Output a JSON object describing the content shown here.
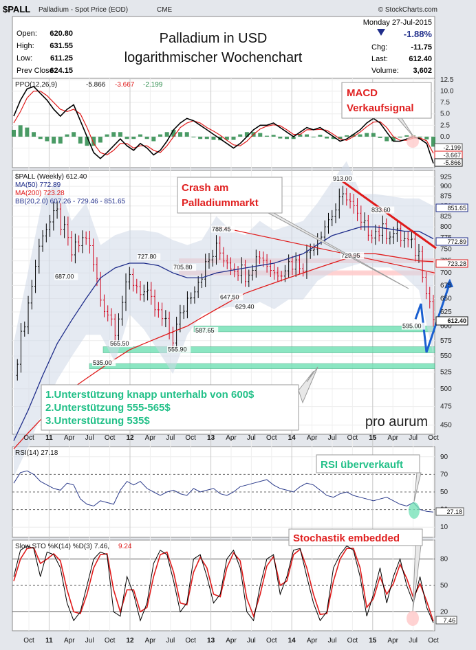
{
  "header": {
    "symbol": "$PALL",
    "name": "Palladium - Spot Price (EOD)",
    "exchange": "CME",
    "source": "© StockCharts.com",
    "date": "Monday  27-Jul-2015",
    "change_pct": "-1.88%",
    "chg_label": "Chg:",
    "chg_value": "-11.75",
    "last_label": "Last:",
    "last_value": "612.40",
    "volume_label": "Volume:",
    "volume_value": "3,602",
    "open_label": "Open:",
    "open_value": "620.80",
    "high_label": "High:",
    "high_value": "631.55",
    "low_label": "Low:",
    "low_value": "611.25",
    "prev_label": "Prev Close:",
    "prev_value": "624.15"
  },
  "title": {
    "line1": "Palladium in USD",
    "line2": "logarithmischer Wochenchart"
  },
  "annotations": {
    "macd": [
      "MACD",
      "Verkaufsignal"
    ],
    "crash": [
      "Crash am",
      "Palladiummarkt"
    ],
    "supports": [
      "1.Unterstützung knapp unterhalb von 600$",
      "2.Unterstützung 555-565$",
      "3.Unterstützung 535$"
    ],
    "rsi": "RSI überverkauft",
    "sto": "Stochastik embedded",
    "watermark": "pro aurum"
  },
  "legends": {
    "ppo": "PPO(12,26,9)",
    "ppo_vals": [
      "-5.866",
      "-3.667",
      "-2.199"
    ],
    "price": "$PALL (Weekly) 612.40",
    "ma50": "MA(50) 772.89",
    "ma200": "MA(200) 723.28",
    "bb": "BB(20,2.0) 607.26 - 729.46 - 851.65",
    "rsi": "RSI(14) 27.18",
    "sto": "Slow STO %K(14) %D(3) 7.46,",
    "sto_d": "9.24"
  },
  "right_labels": {
    "ppo": [
      "-2.199",
      "-3.667",
      "-5.866"
    ],
    "price": [
      "851.65",
      "772.89",
      "723.28",
      "612.40"
    ],
    "rsi": "27.18",
    "sto": "7.46"
  },
  "colors": {
    "up": "#000000",
    "down": "#d0021b",
    "ma50": "#1f2d8a",
    "ma200": "#e01b1b",
    "bb_fill": "#cfd8e8",
    "support": "#6fe0b4",
    "resist": "#ffc7c7",
    "blue_arrow": "#1a5fd0",
    "red_trend": "#e01b1b"
  },
  "x_axis": {
    "ticks": [
      "Oct",
      "11",
      "Apr",
      "Jul",
      "Oct",
      "12",
      "Apr",
      "Jul",
      "Oct",
      "13",
      "Apr",
      "Jul",
      "Oct",
      "14",
      "Apr",
      "Jul",
      "Oct",
      "15",
      "Apr",
      "Jul",
      "Oct"
    ],
    "year_ticks": [
      "11",
      "12",
      "13",
      "14",
      "15"
    ]
  },
  "chart_data": [
    {
      "type": "line",
      "title": "PPO(12,26,9)",
      "y_ticks": [
        12.5,
        10.0,
        7.5,
        5.0,
        2.5,
        0.0,
        -2.5
      ],
      "ylim": [
        -6.5,
        12.5
      ],
      "series": [
        {
          "name": "PPO",
          "values": [
            4.5,
            8.0,
            10.5,
            11.0,
            9.5,
            8.0,
            6.0,
            4.5,
            6.0,
            7.0,
            3.5,
            0.0,
            -3.5,
            -4.8,
            -3.5,
            -2.0,
            -0.5,
            -2.0,
            -3.0,
            -1.5,
            -2.5,
            -4.0,
            -3.0,
            -1.0,
            1.5,
            3.0,
            4.0,
            3.5,
            2.5,
            1.5,
            0.5,
            -0.5,
            -1.5,
            -2.5,
            -1.5,
            0.0,
            1.5,
            2.5,
            2.5,
            3.0,
            2.0,
            1.0,
            0.0,
            1.0,
            2.0,
            1.5,
            2.0,
            1.0,
            0.0,
            -1.0,
            -0.5,
            0.5,
            1.5,
            3.0,
            4.0,
            3.0,
            1.0,
            -1.0,
            -1.0,
            -0.5,
            0.0,
            -0.5,
            -1.5,
            -5.866
          ]
        },
        {
          "name": "Signal",
          "values": [
            3.0,
            5.5,
            8.5,
            10.0,
            10.0,
            9.0,
            7.5,
            6.0,
            5.5,
            6.0,
            5.0,
            2.0,
            -1.5,
            -3.5,
            -4.0,
            -3.0,
            -1.5,
            -1.5,
            -2.5,
            -2.0,
            -2.0,
            -3.0,
            -3.5,
            -2.0,
            0.0,
            2.0,
            3.0,
            3.5,
            3.0,
            2.0,
            1.2,
            0.3,
            -0.8,
            -1.8,
            -2.0,
            -1.0,
            0.5,
            1.7,
            2.3,
            2.6,
            2.4,
            1.5,
            0.5,
            0.5,
            1.5,
            1.5,
            1.6,
            1.4,
            0.5,
            -0.5,
            -0.8,
            0.0,
            1.0,
            2.2,
            3.2,
            3.3,
            2.0,
            0.0,
            -0.8,
            -0.8,
            -0.3,
            -0.3,
            -0.9,
            -3.667
          ]
        },
        {
          "name": "Histogram",
          "values": [
            1.5,
            2.5,
            2.0,
            1.0,
            -0.5,
            -1.0,
            -1.5,
            -1.5,
            0.5,
            1.0,
            -1.5,
            -2.0,
            -2.0,
            -1.3,
            0.5,
            1.0,
            1.0,
            -0.5,
            -0.5,
            0.5,
            -0.5,
            -1.0,
            0.5,
            1.0,
            1.5,
            1.0,
            1.0,
            0.0,
            -0.5,
            -0.5,
            -0.7,
            -0.8,
            -0.7,
            -0.7,
            0.5,
            1.0,
            1.0,
            0.8,
            0.2,
            0.4,
            -0.4,
            -0.5,
            -0.5,
            0.5,
            0.5,
            0.0,
            0.4,
            -0.4,
            -0.5,
            -0.5,
            0.3,
            0.5,
            0.5,
            0.8,
            0.8,
            -0.3,
            -1.0,
            -1.0,
            -0.2,
            0.3,
            0.3,
            -0.2,
            -0.6,
            -2.199
          ]
        }
      ]
    },
    {
      "type": "line",
      "title": "$PALL (Weekly) 612.40",
      "scale": "log",
      "ylim": [
        440,
        935
      ],
      "y_ticks": [
        925,
        900,
        875,
        850,
        825,
        800,
        775,
        750,
        725,
        700,
        675,
        650,
        625,
        600,
        575,
        550,
        525,
        500,
        475,
        450
      ],
      "x": [
        "2010-09",
        "2010-11",
        "2011-01",
        "2011-03",
        "2011-05",
        "2011-07",
        "2011-09",
        "2011-11",
        "2012-01",
        "2012-03",
        "2012-05",
        "2012-07",
        "2012-09",
        "2012-11",
        "2013-01",
        "2013-03",
        "2013-05",
        "2013-07",
        "2013-09",
        "2013-11",
        "2014-01",
        "2014-03",
        "2014-05",
        "2014-07",
        "2014-09",
        "2014-11",
        "2015-01",
        "2015-03",
        "2015-05",
        "2015-07"
      ],
      "series": [
        {
          "name": "$PALL",
          "values": [
            520,
            640,
            790,
            830,
            740,
            780,
            650,
            600,
            690,
            660,
            620,
            580,
            650,
            700,
            750,
            720,
            700,
            740,
            700,
            720,
            720,
            780,
            830,
            880,
            800,
            790,
            790,
            770,
            740,
            612.4
          ]
        },
        {
          "name": "MA(50)",
          "values": [
            430,
            470,
            520,
            570,
            610,
            650,
            690,
            710,
            720,
            720,
            715,
            700,
            690,
            690,
            700,
            705,
            710,
            715,
            720,
            730,
            740,
            760,
            780,
            790,
            800,
            800,
            795,
            790,
            790,
            772.89
          ]
        },
        {
          "name": "MA(200)",
          "values": [
            420,
            440,
            460,
            480,
            500,
            515,
            530,
            545,
            560,
            570,
            580,
            590,
            600,
            615,
            630,
            645,
            660,
            670,
            680,
            690,
            700,
            710,
            720,
            730,
            740,
            740,
            735,
            730,
            725,
            723.28
          ]
        }
      ],
      "price_labels": [
        "687.00",
        "727.80",
        "565.50",
        "555.90",
        "535.00",
        "705.80",
        "587.65",
        "788.45",
        "647.50",
        "629.40",
        "729.95",
        "913.00",
        "833.60",
        "595.00"
      ],
      "support_levels": [
        [
          590,
          600
        ],
        [
          555,
          565
        ],
        [
          530,
          538
        ]
      ],
      "resistance_levels": [
        [
          695,
          705
        ],
        [
          720,
          730
        ]
      ]
    },
    {
      "type": "line",
      "title": "RSI(14) 27.18",
      "ylim": [
        0,
        100
      ],
      "y_ticks": [
        90,
        70,
        50,
        30,
        10
      ],
      "series": [
        {
          "name": "RSI",
          "values": [
            60,
            72,
            74,
            70,
            62,
            58,
            54,
            52,
            60,
            58,
            42,
            36,
            34,
            40,
            38,
            36,
            52,
            62,
            58,
            62,
            54,
            50,
            46,
            50,
            52,
            48,
            46,
            54,
            50,
            52,
            54,
            48,
            46,
            50,
            56,
            58,
            60,
            62,
            64,
            58,
            54,
            52,
            50,
            56,
            60,
            58,
            52,
            46,
            44,
            48,
            50,
            46,
            44,
            42,
            40,
            42,
            44,
            40,
            36,
            34,
            38,
            30,
            28,
            27.18
          ]
        }
      ]
    },
    {
      "type": "line",
      "title": "Slow STO %K(14) %D(3)",
      "ylim": [
        0,
        100
      ],
      "y_ticks": [
        80,
        50,
        20
      ],
      "series": [
        {
          "name": "%K",
          "values": [
            60,
            90,
            95,
            92,
            60,
            88,
            85,
            70,
            30,
            10,
            20,
            50,
            80,
            88,
            85,
            20,
            15,
            60,
            40,
            10,
            30,
            75,
            90,
            85,
            55,
            20,
            30,
            80,
            85,
            60,
            30,
            40,
            80,
            90,
            70,
            20,
            10,
            50,
            80,
            85,
            40,
            60,
            90,
            92,
            60,
            30,
            10,
            20,
            70,
            85,
            95,
            90,
            60,
            15,
            40,
            70,
            30,
            60,
            80,
            50,
            30,
            60,
            25,
            7.46
          ]
        },
        {
          "name": "%D",
          "values": [
            55,
            80,
            92,
            93,
            75,
            80,
            86,
            78,
            45,
            20,
            18,
            40,
            70,
            85,
            86,
            45,
            20,
            45,
            45,
            20,
            25,
            60,
            85,
            88,
            65,
            30,
            28,
            65,
            82,
            70,
            40,
            37,
            70,
            87,
            78,
            35,
            15,
            40,
            72,
            83,
            50,
            55,
            85,
            91,
            70,
            40,
            17,
            18,
            55,
            80,
            92,
            92,
            70,
            25,
            35,
            60,
            40,
            52,
            74,
            58,
            36,
            52,
            32,
            9.24
          ]
        }
      ]
    }
  ]
}
